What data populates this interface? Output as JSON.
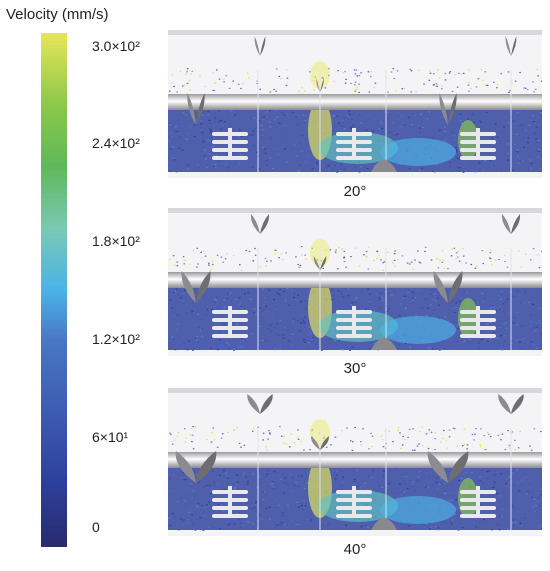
{
  "colorbar": {
    "title": "Velocity (mm/s)",
    "ticks": [
      "3.0×10²",
      "2.4×10²",
      "1.8×10²",
      "1.2×10²",
      "6×10¹",
      "0"
    ],
    "colors": [
      "#2a2a6e",
      "#2c3f9a",
      "#3d5bb0",
      "#4a76c4",
      "#4bb4e8",
      "#79c9b4",
      "#5fb85a",
      "#8cc84a",
      "#e6e65a"
    ]
  },
  "panels": [
    {
      "label": "20°"
    },
    {
      "label": "30°"
    },
    {
      "label": "40°"
    }
  ]
}
